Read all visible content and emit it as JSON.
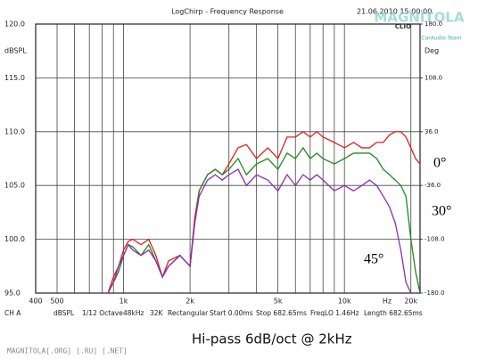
{
  "chart_data": {
    "type": "line",
    "title": "LogChirp - Frequency Response",
    "timestamp": "21.06.2010 15:00:00",
    "ylabel": "dBSPL",
    "y2label": "Deg",
    "xunit": "Hz",
    "xlog": true,
    "grid": true,
    "xlim": [
      400,
      22000
    ],
    "xticks": [
      {
        "value": 400,
        "label": "400"
      },
      {
        "value": 500,
        "label": "500"
      },
      {
        "value": 1000,
        "label": "1k"
      },
      {
        "value": 2000,
        "label": "2k"
      },
      {
        "value": 5000,
        "label": "5k"
      },
      {
        "value": 10000,
        "label": "10k"
      },
      {
        "value": 20000,
        "label": "20k"
      }
    ],
    "xminor_ticks": [
      600,
      700,
      800,
      900,
      3000,
      4000,
      6000,
      7000,
      8000,
      9000
    ],
    "ylim": [
      95,
      120
    ],
    "yticks": [
      {
        "value": 95,
        "label": "95.0"
      },
      {
        "value": 100,
        "label": "100.0"
      },
      {
        "value": 105,
        "label": "105.0"
      },
      {
        "value": 110,
        "label": "110.0"
      },
      {
        "value": 115,
        "label": "115.0"
      },
      {
        "value": 120,
        "label": "120.0"
      }
    ],
    "y2lim": [
      -180,
      180
    ],
    "y2ticks": [
      {
        "value": -180,
        "label": "-180.0"
      },
      {
        "value": -108,
        "label": "-108.0"
      },
      {
        "value": -36,
        "label": "-36.0"
      },
      {
        "value": 36,
        "label": "36.0"
      },
      {
        "value": 108,
        "label": "108.0"
      },
      {
        "value": 180,
        "label": "180.0"
      }
    ],
    "x": [
      850,
      900,
      950,
      1000,
      1050,
      1100,
      1200,
      1300,
      1400,
      1500,
      1600,
      1800,
      2000,
      2100,
      2200,
      2400,
      2600,
      2800,
      3000,
      3300,
      3600,
      4000,
      4500,
      5000,
      5500,
      6000,
      6500,
      7000,
      7500,
      8000,
      9000,
      10000,
      11000,
      12000,
      13000,
      14000,
      15000,
      16000,
      17000,
      18000,
      19000,
      20000,
      21000,
      22000
    ],
    "series": [
      {
        "color": "#e0201c",
        "values": [
          95,
          96.5,
          97.5,
          99,
          99.8,
          100,
          99.5,
          100,
          98.5,
          96.5,
          98,
          98.5,
          97.5,
          102,
          104.5,
          106,
          106.5,
          106,
          107,
          108.5,
          108.8,
          107.5,
          108.5,
          107.5,
          109.5,
          109.5,
          110,
          109.5,
          110,
          109.5,
          109,
          108.5,
          109,
          108.5,
          108.5,
          109,
          109,
          109.7,
          110,
          110,
          109.5,
          108.5,
          107.5,
          107
        ]
      },
      {
        "color": "#1d8a1d",
        "values": [
          95,
          96,
          97,
          98.5,
          99.5,
          99.3,
          98.5,
          99.5,
          98,
          96.5,
          97.5,
          98.5,
          97.5,
          101.5,
          104.5,
          106,
          106.5,
          106,
          106.5,
          107.5,
          106,
          107,
          107.5,
          106.5,
          108,
          107.5,
          108.5,
          107.5,
          108,
          107.5,
          107,
          107.5,
          108,
          108,
          108,
          107.5,
          106.5,
          106,
          105.5,
          105,
          104,
          100,
          97,
          95
        ]
      },
      {
        "color": "#8e2bb5",
        "values": [
          95,
          96,
          97.5,
          98.5,
          99.5,
          99,
          98.5,
          99,
          98,
          96.5,
          97.5,
          98.5,
          97.5,
          101.5,
          104,
          105.5,
          106,
          105.5,
          106,
          106.5,
          105,
          106,
          105.5,
          104.5,
          106,
          105,
          106,
          105.5,
          106,
          105.5,
          104.5,
          105,
          104.5,
          105,
          105.5,
          105,
          104,
          103,
          101.5,
          99,
          96,
          95,
          null,
          null
        ]
      }
    ],
    "annotations": [
      "0°",
      "30°",
      "45°"
    ],
    "footer": [
      "CH A",
      "dBSPL",
      "1/12 Octave",
      "48kHz",
      "32K",
      "Rectangular",
      "Start 0.00ms",
      "Stop 682.65ms",
      "FreqLO 1.46Hz",
      "Length 682.65ms"
    ],
    "caption": "Hi-pass 6dB/oct @ 2kHz",
    "watermark": "MAGNITOLA[.ORG] [.RU] [.NET]",
    "logo": {
      "brand": "MAGNITOLA",
      "team": "CarAudio Team",
      "clio": "CLIO"
    }
  }
}
